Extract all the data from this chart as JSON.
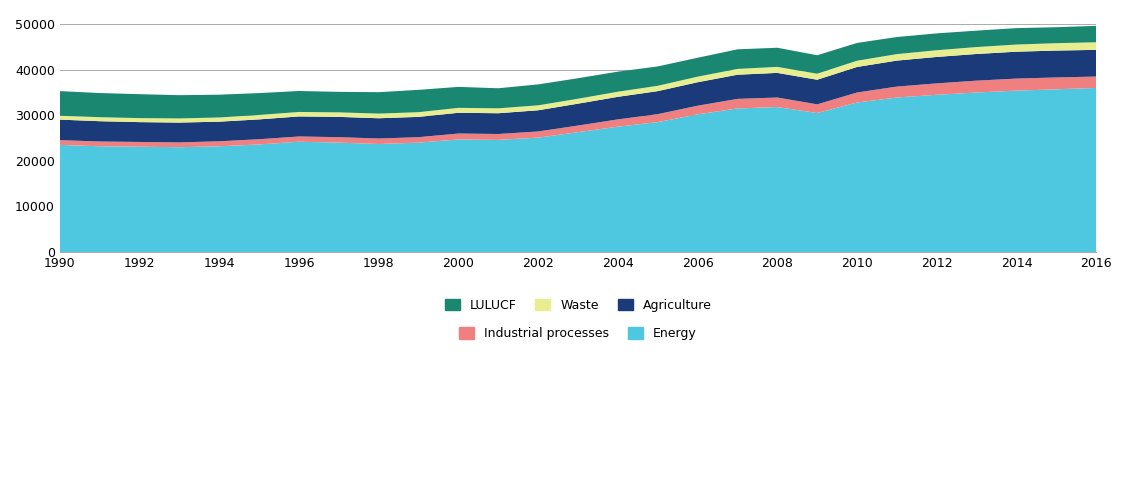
{
  "years": [
    1990,
    1991,
    1992,
    1993,
    1994,
    1995,
    1996,
    1997,
    1998,
    1999,
    2000,
    2001,
    2002,
    2003,
    2004,
    2005,
    2006,
    2007,
    2008,
    2009,
    2010,
    2011,
    2012,
    2013,
    2014,
    2015,
    2016
  ],
  "energy": [
    23500,
    23200,
    23100,
    23000,
    23200,
    23600,
    24200,
    24000,
    23700,
    24000,
    24700,
    24600,
    25100,
    26300,
    27500,
    28500,
    30200,
    31500,
    31800,
    30500,
    32800,
    33900,
    34500,
    35000,
    35400,
    35700,
    36000
  ],
  "industrial_processes": [
    1050,
    1050,
    1050,
    1050,
    1100,
    1150,
    1150,
    1200,
    1200,
    1200,
    1300,
    1300,
    1350,
    1450,
    1600,
    1750,
    1900,
    2100,
    2100,
    1900,
    2200,
    2400,
    2500,
    2600,
    2650,
    2600,
    2500
  ],
  "agriculture": [
    4500,
    4450,
    4350,
    4350,
    4300,
    4350,
    4400,
    4450,
    4450,
    4450,
    4550,
    4550,
    4650,
    4800,
    4950,
    5050,
    5150,
    5300,
    5400,
    5400,
    5600,
    5700,
    5800,
    5850,
    5900,
    5900,
    5850
  ],
  "waste": [
    850,
    880,
    880,
    910,
    920,
    970,
    980,
    990,
    1020,
    1030,
    1080,
    1080,
    1080,
    1080,
    1120,
    1170,
    1220,
    1270,
    1320,
    1320,
    1370,
    1420,
    1470,
    1520,
    1570,
    1620,
    1670
  ],
  "lulucf": [
    5400,
    5300,
    5250,
    5100,
    5000,
    4800,
    4600,
    4500,
    4700,
    4900,
    4600,
    4400,
    4600,
    4500,
    4400,
    4250,
    4150,
    4300,
    4200,
    4050,
    3900,
    3750,
    3700,
    3600,
    3600,
    3500,
    3600
  ],
  "colors": {
    "energy": "#4DC8E0",
    "industrial_processes": "#F08080",
    "agriculture": "#1A3A7A",
    "waste": "#E8EE90",
    "lulucf": "#1A8870"
  },
  "ylim": [
    0,
    52000
  ],
  "yticks": [
    0,
    10000,
    20000,
    30000,
    40000,
    50000
  ],
  "legend_items": [
    {
      "label": "LULUCF",
      "color": "#1A8870"
    },
    {
      "label": "Waste",
      "color": "#E8EE90"
    },
    {
      "label": "Agriculture",
      "color": "#1A3A7A"
    },
    {
      "label": "Industrial processes",
      "color": "#F08080"
    },
    {
      "label": "Energy",
      "color": "#4DC8E0"
    }
  ]
}
